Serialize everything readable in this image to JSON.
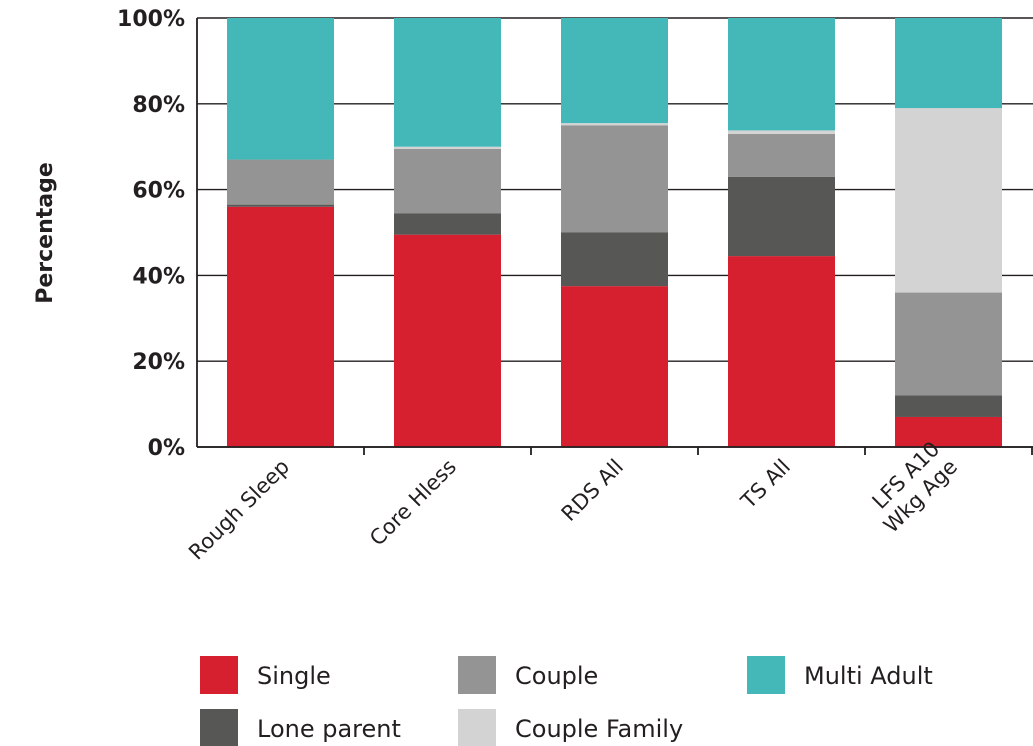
{
  "chart_data": {
    "type": "bar",
    "stacked": true,
    "ylabel": "Percentage",
    "xlabel": "",
    "ylim": [
      0,
      100
    ],
    "y_ticks": [
      "0%",
      "20%",
      "40%",
      "60%",
      "80%",
      "100%"
    ],
    "categories": [
      [
        "Rough Sleep"
      ],
      [
        "Core Hless"
      ],
      [
        "RDS All"
      ],
      [
        "TS All"
      ],
      [
        "LFS A10",
        "Wkg Age"
      ]
    ],
    "series": [
      {
        "name": "Single",
        "color": "#d6202f",
        "values": [
          56,
          49.5,
          37.5,
          44.5,
          7
        ]
      },
      {
        "name": "Lone parent",
        "color": "#575756",
        "values": [
          0.5,
          5,
          12.5,
          18.5,
          5
        ]
      },
      {
        "name": "Couple",
        "color": "#949494",
        "values": [
          10.5,
          15,
          25,
          10,
          24
        ]
      },
      {
        "name": "Couple Family",
        "color": "#d3d3d3",
        "values": [
          0,
          0.5,
          0.5,
          0.8,
          43
        ]
      },
      {
        "name": "Multi Adult",
        "color": "#44b8b8",
        "values": [
          33,
          30,
          24.5,
          26.2,
          21
        ]
      }
    ],
    "legend_position": "bottom",
    "grid": true
  }
}
